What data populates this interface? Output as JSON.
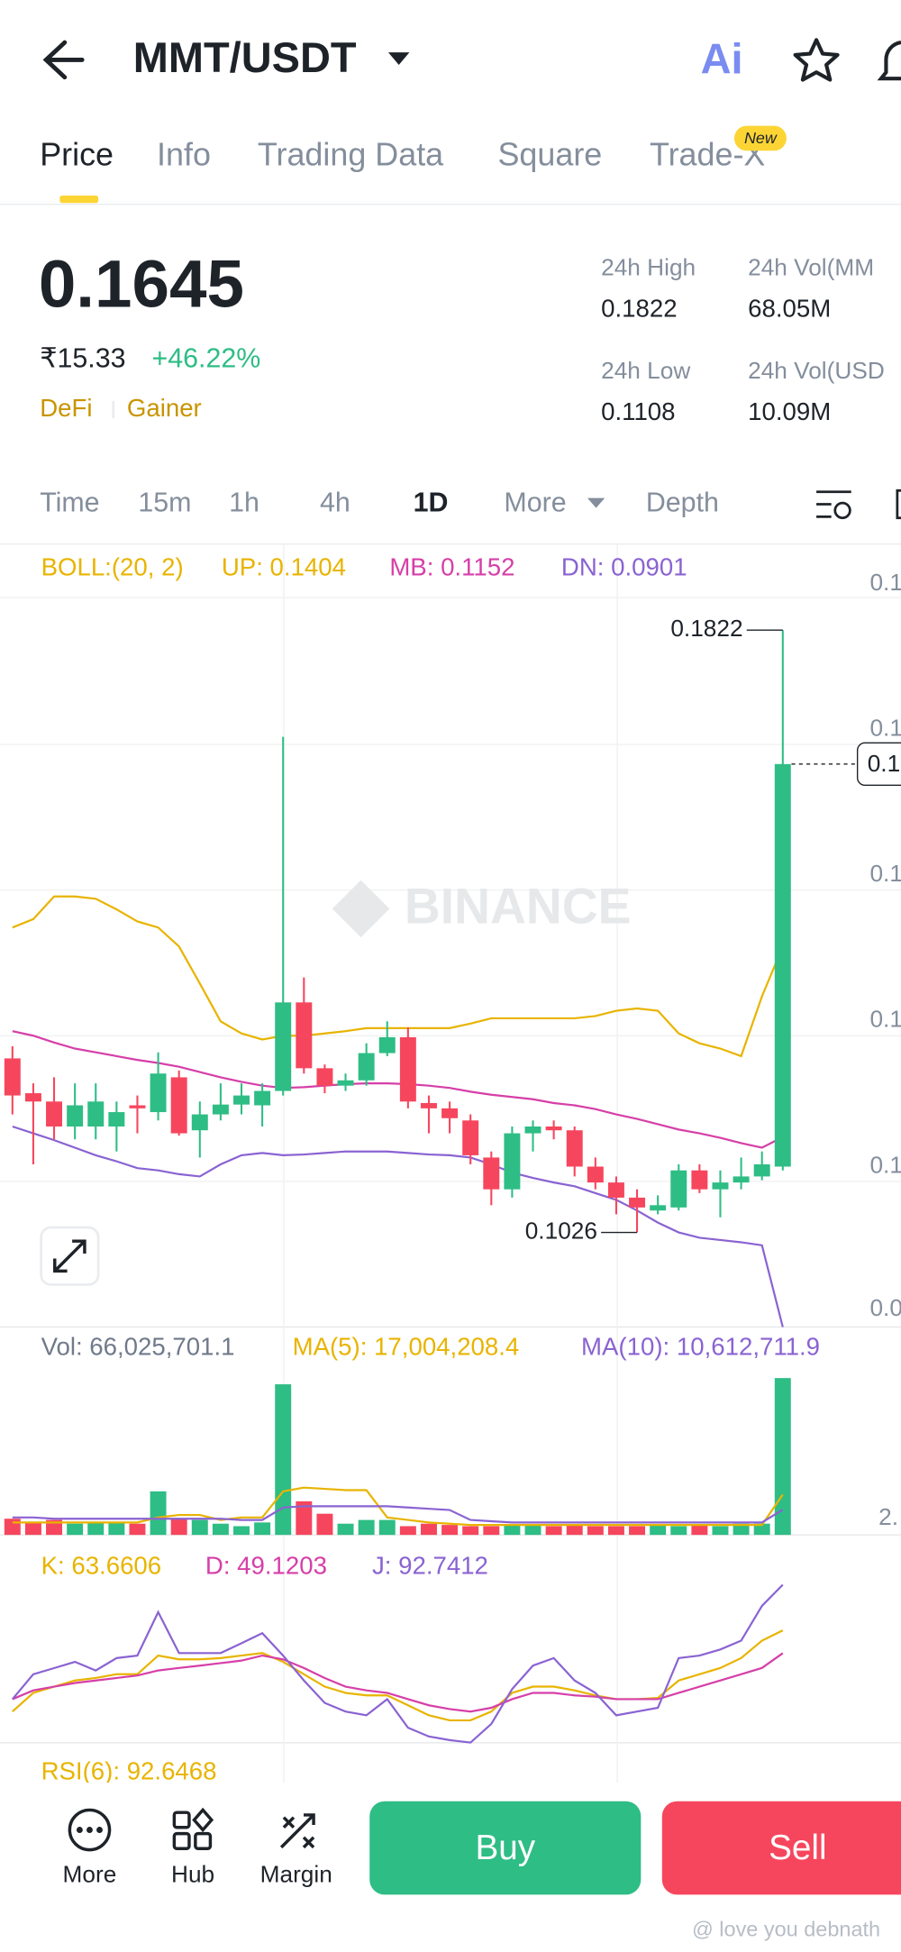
{
  "header": {
    "pair": "MMT/USDT"
  },
  "tabs": [
    "Price",
    "Info",
    "Trading Data",
    "Square",
    "Trade-X"
  ],
  "new_badge": "New",
  "price": {
    "last": "0.1645",
    "fiat": "₹15.33",
    "change": "+46.22%",
    "tags": [
      "DeFi",
      "Gainer"
    ]
  },
  "stats": [
    {
      "label": "24h High",
      "value": "0.1822"
    },
    {
      "label": "24h Vol(MM",
      "value": "68.05M"
    },
    {
      "label": "24h Low",
      "value": "0.1108"
    },
    {
      "label": "24h Vol(USD",
      "value": "10.09M"
    }
  ],
  "intervals": [
    "Time",
    "15m",
    "1h",
    "4h",
    "1D",
    "More",
    "Depth"
  ],
  "watermark": "BINANCE",
  "chart_data": {
    "type": "candlestick",
    "ylim": [
      0.0901,
      0.1865
    ],
    "axis_labels": [
      "0.1",
      "0.1",
      "0.1",
      "0.1",
      "0.1",
      "0.0"
    ],
    "high_label": "0.1822",
    "low_label": "0.1026",
    "current_label": "0.1",
    "boll": {
      "label": "BOLL:(20, 2)",
      "lines": [
        {
          "label": "UP: 0.1404",
          "color": "#e8b400",
          "values": [
            0.1429,
            0.144,
            0.147,
            0.147,
            0.1467,
            0.1453,
            0.1437,
            0.1429,
            0.1404,
            0.1355,
            0.1305,
            0.1289,
            0.1281,
            0.1286,
            0.1286,
            0.1289,
            0.1292,
            0.1296,
            0.1296,
            0.1296,
            0.1296,
            0.1296,
            0.1302,
            0.1309,
            0.1309,
            0.1309,
            0.1309,
            0.1309,
            0.1312,
            0.1319,
            0.1322,
            0.1319,
            0.1289,
            0.1276,
            0.1269,
            0.1259,
            0.1338,
            0.1404
          ]
        },
        {
          "label": "MB: 0.1152",
          "color": "#d63fa8",
          "values": [
            0.1292,
            0.1286,
            0.1277,
            0.1269,
            0.1264,
            0.1259,
            0.1254,
            0.125,
            0.1245,
            0.1238,
            0.1231,
            0.1225,
            0.122,
            0.1217,
            0.1218,
            0.122,
            0.1222,
            0.1223,
            0.1223,
            0.1222,
            0.122,
            0.1217,
            0.1212,
            0.1208,
            0.1205,
            0.1202,
            0.1197,
            0.1194,
            0.1189,
            0.1182,
            0.1176,
            0.1169,
            0.1162,
            0.1157,
            0.1151,
            0.1144,
            0.1138,
            0.1152
          ]
        },
        {
          "label": "DN: 0.0901",
          "color": "#8a63d2",
          "values": [
            0.1166,
            0.1157,
            0.1148,
            0.1138,
            0.1128,
            0.112,
            0.1111,
            0.1108,
            0.1103,
            0.11,
            0.1116,
            0.1128,
            0.1131,
            0.1128,
            0.1129,
            0.1131,
            0.1133,
            0.1133,
            0.1133,
            0.1131,
            0.1129,
            0.1128,
            0.1125,
            0.1116,
            0.1105,
            0.1098,
            0.1092,
            0.1087,
            0.1078,
            0.1069,
            0.1055,
            0.1039,
            0.1026,
            0.1019,
            0.1016,
            0.1013,
            0.1009,
            0.0901
          ]
        }
      ]
    },
    "ohlc": [
      [
        0.1256,
        0.1272,
        0.1182,
        0.1207
      ],
      [
        0.121,
        0.1223,
        0.1116,
        0.1199
      ],
      [
        0.1199,
        0.1231,
        0.1149,
        0.1166
      ],
      [
        0.1166,
        0.1223,
        0.1149,
        0.1194
      ],
      [
        0.1166,
        0.1223,
        0.1149,
        0.1199
      ],
      [
        0.1166,
        0.1199,
        0.1133,
        0.1185
      ],
      [
        0.1194,
        0.1207,
        0.1157,
        0.119
      ],
      [
        0.1185,
        0.1264,
        0.1174,
        0.1236
      ],
      [
        0.1231,
        0.124,
        0.1154,
        0.1157
      ],
      [
        0.1161,
        0.1199,
        0.1125,
        0.1182
      ],
      [
        0.1182,
        0.1223,
        0.1174,
        0.1195
      ],
      [
        0.1195,
        0.1223,
        0.1182,
        0.1207
      ],
      [
        0.1194,
        0.1223,
        0.1166,
        0.1213
      ],
      [
        0.1213,
        0.1681,
        0.1207,
        0.133
      ],
      [
        0.133,
        0.1363,
        0.1236,
        0.1243
      ],
      [
        0.1243,
        0.1248,
        0.121,
        0.122
      ],
      [
        0.122,
        0.1236,
        0.1213,
        0.1227
      ],
      [
        0.1227,
        0.1276,
        0.122,
        0.1263
      ],
      [
        0.1263,
        0.1305,
        0.1259,
        0.1284
      ],
      [
        0.1284,
        0.1297,
        0.119,
        0.1199
      ],
      [
        0.1197,
        0.1207,
        0.1157,
        0.119
      ],
      [
        0.119,
        0.1199,
        0.1157,
        0.1177
      ],
      [
        0.1174,
        0.1182,
        0.1116,
        0.1128
      ],
      [
        0.1125,
        0.1133,
        0.1062,
        0.1083
      ],
      [
        0.1083,
        0.1166,
        0.1072,
        0.1157
      ],
      [
        0.1157,
        0.1174,
        0.1133,
        0.1166
      ],
      [
        0.1166,
        0.1174,
        0.1149,
        0.1161
      ],
      [
        0.1161,
        0.1166,
        0.11,
        0.1113
      ],
      [
        0.1113,
        0.1125,
        0.1083,
        0.1092
      ],
      [
        0.1092,
        0.11,
        0.105,
        0.1072
      ],
      [
        0.1072,
        0.1083,
        0.1026,
        0.1059
      ],
      [
        0.1055,
        0.1075,
        0.105,
        0.1062
      ],
      [
        0.1059,
        0.1116,
        0.1055,
        0.1108
      ],
      [
        0.1108,
        0.1116,
        0.1078,
        0.1083
      ],
      [
        0.1083,
        0.1108,
        0.1046,
        0.1092
      ],
      [
        0.1092,
        0.1125,
        0.1083,
        0.11
      ],
      [
        0.11,
        0.1133,
        0.1095,
        0.1116
      ],
      [
        0.1113,
        0.1822,
        0.1108,
        0.1645
      ]
    ],
    "volume": {
      "label": "Vol: 66,025,701.1",
      "ylim": [
        0,
        69700000
      ],
      "axis_label": "2.",
      "values": [
        6810000,
        5240000,
        6290000,
        4720000,
        5240000,
        5240000,
        4720000,
        18340000,
        6810000,
        6290000,
        4720000,
        3670000,
        5240000,
        63400000,
        14150000,
        8910000,
        4720000,
        6290000,
        6290000,
        3670000,
        4720000,
        4190000,
        3670000,
        3670000,
        4190000,
        4190000,
        3670000,
        4190000,
        3670000,
        3670000,
        3670000,
        4190000,
        3670000,
        4190000,
        3670000,
        4720000,
        4720000,
        66025701.1
      ],
      "lines": [
        {
          "label": "MA(5): 17,004,208.4",
          "color": "#e8b400",
          "values": [
            5240000,
            5240000,
            5240000,
            5240000,
            5240000,
            5240000,
            5240000,
            7340000,
            8380000,
            8380000,
            6290000,
            7340000,
            7340000,
            18340000,
            19910000,
            19390000,
            18860000,
            18860000,
            7340000,
            6290000,
            5240000,
            4720000,
            4190000,
            4190000,
            4190000,
            4190000,
            4190000,
            4190000,
            4190000,
            4190000,
            4190000,
            4190000,
            4190000,
            4190000,
            4190000,
            4190000,
            4190000,
            17004208.4
          ]
        },
        {
          "label": "MA(10): 10,612,711.9",
          "color": "#8a63d2",
          "values": [
            7340000,
            7340000,
            6810000,
            6810000,
            6810000,
            6810000,
            6810000,
            6810000,
            6810000,
            6810000,
            6810000,
            6290000,
            6290000,
            11530000,
            12050000,
            12050000,
            12050000,
            12050000,
            12050000,
            11530000,
            11000000,
            10480000,
            6290000,
            5760000,
            5240000,
            5240000,
            5240000,
            5240000,
            5240000,
            5240000,
            5240000,
            5240000,
            5240000,
            5240000,
            5240000,
            5240000,
            5240000,
            10612711.9
          ]
        }
      ]
    },
    "kdj": {
      "ylim": [
        -8,
        119
      ],
      "lines": [
        {
          "label": "K: 63.6606",
          "color": "#e8b400",
          "values": [
            11.9,
            23.8,
            27.8,
            31.7,
            33.3,
            35.7,
            35.7,
            47.6,
            45.2,
            45.2,
            46.0,
            47.6,
            49.2,
            43.6,
            35.7,
            27.8,
            23.8,
            22.2,
            22.2,
            15.9,
            9.5,
            6.3,
            6.3,
            11.9,
            23.8,
            27.8,
            27.8,
            25.4,
            22.2,
            19.8,
            19.8,
            20.6,
            31.7,
            35.7,
            39.7,
            46.0,
            57.1,
            63.6606
          ]
        },
        {
          "label": "D: 49.1203",
          "color": "#d63fa8",
          "values": [
            19.8,
            25.4,
            27.8,
            30.1,
            31.7,
            33.3,
            34.9,
            38.1,
            39.7,
            41.2,
            42.8,
            44.4,
            47.6,
            45.2,
            39.7,
            33.3,
            27.8,
            25.4,
            23.8,
            19.8,
            15.9,
            13.5,
            11.9,
            14.3,
            19.8,
            23.8,
            23.8,
            22.2,
            21.4,
            19.8,
            19.8,
            19.8,
            23.8,
            27.8,
            31.7,
            35.7,
            39.7,
            49.1203
          ]
        },
        {
          "label": "J: 92.7412",
          "color": "#8a63d2",
          "values": [
            19.8,
            35.7,
            39.6,
            43.6,
            38.1,
            46.0,
            47.6,
            75.3,
            49.2,
            49.2,
            49.2,
            55.5,
            61.9,
            47.6,
            31.7,
            17.4,
            11.9,
            9.5,
            19.8,
            1.6,
            -4.0,
            -6.3,
            -7.9,
            4.0,
            26.2,
            41.2,
            46.0,
            31.7,
            23.8,
            9.5,
            11.9,
            14.3,
            46.0,
            47.6,
            51.5,
            57.1,
            79.3,
            92.7412
          ]
        }
      ]
    },
    "rsi_label": "RSI(6): 92.6468"
  },
  "bottom": {
    "nav": [
      "More",
      "Hub",
      "Margin"
    ],
    "buy": "Buy",
    "sell": "Sell"
  },
  "credit": "@ love you debnath"
}
